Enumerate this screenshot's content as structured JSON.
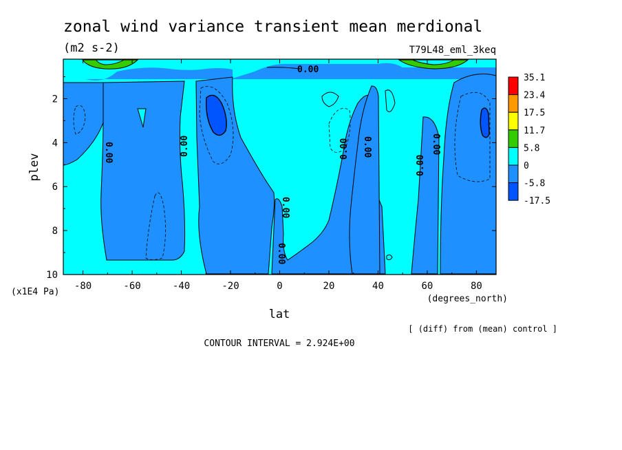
{
  "chart_data": {
    "type": "heatmap",
    "title": "zonal wind variance transient mean merdional",
    "subtitle": "(m2 s-2)",
    "run_label": "T79L48_eml_3keq",
    "xlabel": "lat",
    "x_units": "(degrees_north)",
    "ylabel": "plev",
    "y_units": "(x1E4 Pa)",
    "xlim": [
      -88,
      88
    ],
    "ylim": [
      10,
      0.2
    ],
    "y_inverted": true,
    "x_ticks": [
      -80,
      -60,
      -40,
      -20,
      0,
      20,
      40,
      60,
      80
    ],
    "y_ticks": [
      2,
      4,
      6,
      8,
      10
    ],
    "contour_interval_text": "CONTOUR INTERVAL = 2.924E+00",
    "comparison_note": "[ (diff) from (mean) control ]",
    "zero_contour_label": "0.00",
    "colorbar": {
      "labels": [
        "35.1",
        "23.4",
        "17.5",
        "11.7",
        "5.8",
        "0",
        "-5.8",
        "-17.5"
      ],
      "colors": [
        "#ff0000",
        "#ff9900",
        "#ffff00",
        "#33cc00",
        "#00ffff",
        "#1e90ff",
        "#0055ff"
      ]
    },
    "colors": {
      "background_positive": "#00ffff",
      "negative": "#1e90ff",
      "strong_negative": "#0055ff",
      "strong_positive": "#33cc00"
    }
  }
}
